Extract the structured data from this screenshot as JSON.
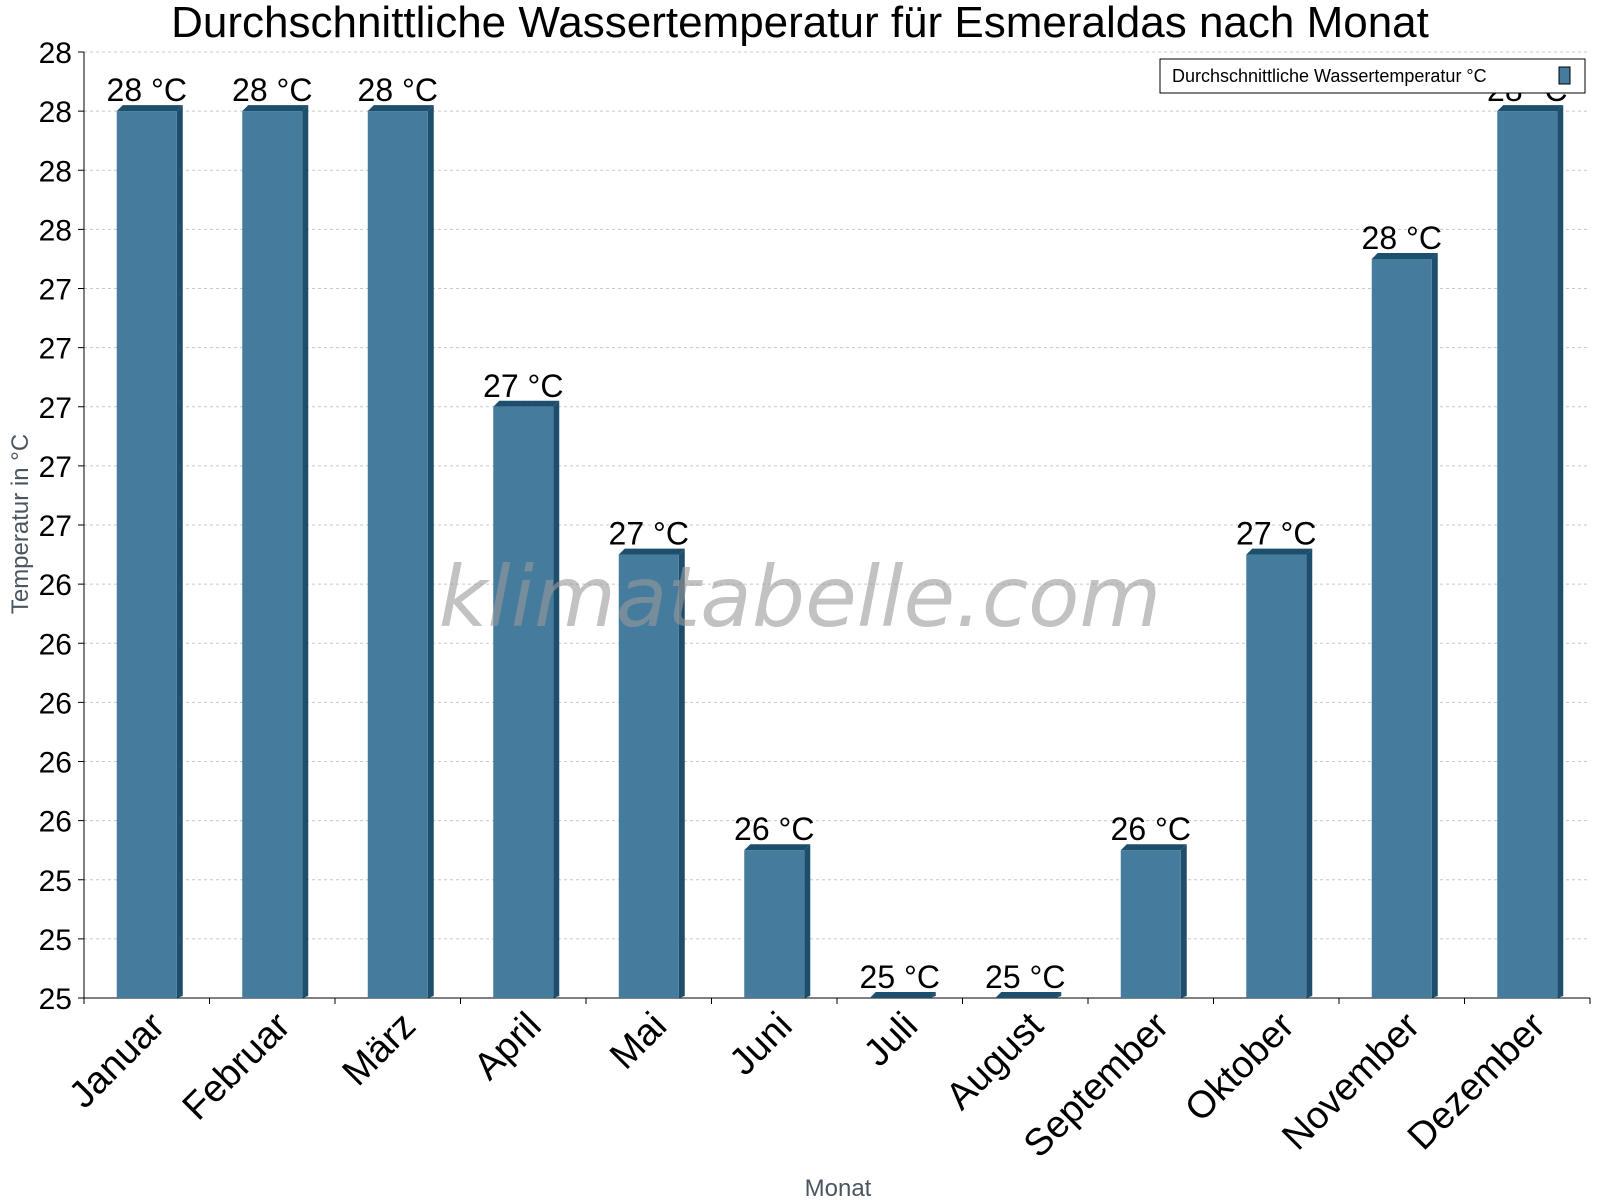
{
  "chart_data": {
    "type": "bar",
    "title": "Durchschnittliche Wassertemperatur für Esmeraldas nach Monat",
    "xlabel": "Monat",
    "ylabel": "Temperatur in °C",
    "categories": [
      "Januar",
      "Februar",
      "März",
      "April",
      "Mai",
      "Juni",
      "Juli",
      "August",
      "September",
      "Oktober",
      "November",
      "Dezember"
    ],
    "series": [
      {
        "name": "Durchschnittliche Wassertemperatur °C",
        "values": [
          28.0,
          28.0,
          28.0,
          27.0,
          26.5,
          25.5,
          25.0,
          25.0,
          25.5,
          26.5,
          27.5,
          28.0
        ],
        "labels": [
          "28 °C",
          "28 °C",
          "28 °C",
          "27 °C",
          "27 °C",
          "26 °C",
          "25 °C",
          "25 °C",
          "26 °C",
          "27 °C",
          "28 °C",
          "28 °C"
        ],
        "color": "#457b9d",
        "edge_color": "#1d4e6b"
      }
    ],
    "ylim": [
      25.0,
      28.2
    ],
    "yticks": [
      25.0,
      25.2,
      25.4,
      25.6,
      25.8,
      26.0,
      26.2,
      26.4,
      26.6,
      26.8,
      27.0,
      27.2,
      27.4,
      27.6,
      27.8,
      28.0,
      28.2
    ],
    "ytick_labels": [
      "25",
      "25",
      "25",
      "26",
      "26",
      "26",
      "26",
      "26",
      "27",
      "27",
      "27",
      "27",
      "27",
      "28",
      "28",
      "28",
      "28"
    ],
    "grid": true,
    "legend_position": "top-right"
  },
  "watermark": "klimatabelle.com"
}
